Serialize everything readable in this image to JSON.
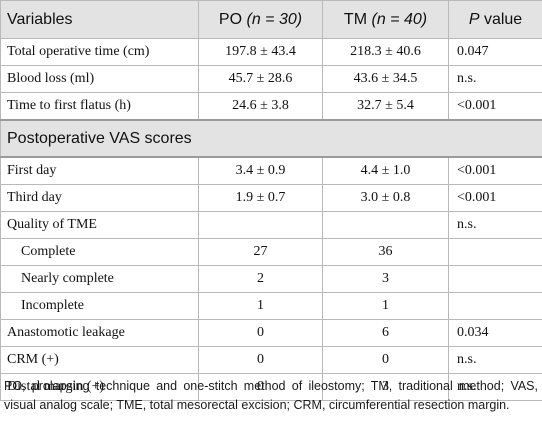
{
  "header": {
    "variables": "Variables",
    "po_label": "PO",
    "po_n": "(n = 30)",
    "tm_label": "TM",
    "tm_n": "(n = 40)",
    "p_letter": "P",
    "p_rest": "value"
  },
  "rows": [
    {
      "label": "Total operative time (cm)",
      "po": "197.8 ± 43.4",
      "tm": "218.3 ± 40.6",
      "p": "0.047"
    },
    {
      "label": "Blood loss (ml)",
      "po": "45.7 ± 28.6",
      "tm": "43.6 ± 34.5",
      "p": "n.s."
    },
    {
      "label": "Time to first flatus (h)",
      "po": "24.6 ± 3.8",
      "tm": "32.7 ± 5.4",
      "p": "<0.001"
    }
  ],
  "section_vas": "Postoperative VAS scores",
  "vas_rows": [
    {
      "label": "First day",
      "po": "3.4 ± 0.9",
      "tm": "4.4 ± 1.0",
      "p": "<0.001"
    },
    {
      "label": "Third day",
      "po": "1.9 ± 0.7",
      "tm": "3.0 ± 0.8",
      "p": "<0.001"
    }
  ],
  "tme": {
    "label": "Quality of TME",
    "p": "n.s.",
    "sub": [
      {
        "label": "Complete",
        "po": "27",
        "tm": "36"
      },
      {
        "label": "Nearly complete",
        "po": "2",
        "tm": "3"
      },
      {
        "label": "Incomplete",
        "po": "1",
        "tm": "1"
      }
    ]
  },
  "other_rows": [
    {
      "label": "Anastomotic leakage",
      "po": "0",
      "tm": "6",
      "p": "0.034"
    },
    {
      "label": "CRM (+)",
      "po": "0",
      "tm": "0",
      "p": "n.s."
    },
    {
      "label": "Distal margin (+)",
      "po": "0",
      "tm": "3",
      "p": "n.s."
    }
  ],
  "footnote": "PO, prolapsing technique and one-stitch method of ileostomy; TM, traditional method; VAS, visual analog scale; TME, total mesorectal excision; CRM, circumferential resection margin."
}
